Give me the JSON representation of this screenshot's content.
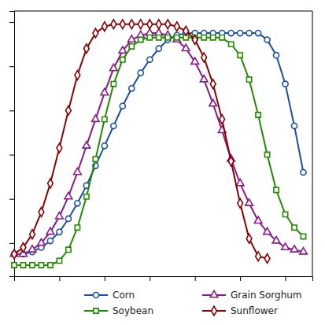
{
  "chart_data": {
    "type": "line",
    "series": [
      {
        "name": "Corn",
        "color": "#1a4faa",
        "marker": "circle",
        "x": [
          0,
          1,
          2,
          3,
          4,
          5,
          6,
          7,
          8,
          9,
          10,
          11,
          12,
          13,
          14,
          15,
          16,
          17,
          18,
          19,
          20,
          21,
          22,
          23,
          24,
          25,
          26,
          27,
          28,
          29,
          30,
          31,
          32
        ],
        "values": [
          0.15,
          0.15,
          0.16,
          0.18,
          0.21,
          0.25,
          0.31,
          0.38,
          0.46,
          0.55,
          0.64,
          0.73,
          0.82,
          0.9,
          0.97,
          1.03,
          1.08,
          1.12,
          1.14,
          1.15,
          1.15,
          1.15,
          1.15,
          1.15,
          1.15,
          1.15,
          1.15,
          1.15,
          1.12,
          1.05,
          0.92,
          0.73,
          0.52
        ]
      },
      {
        "name": "Grain Sorghum",
        "color": "#8b1a8b",
        "marker": "triangle",
        "x": [
          0,
          1,
          2,
          3,
          4,
          5,
          6,
          7,
          8,
          9,
          10,
          11,
          12,
          13,
          14,
          15,
          16,
          17,
          18,
          19,
          20,
          21,
          22,
          23,
          24,
          25,
          26,
          27,
          28,
          29,
          30,
          31,
          32
        ],
        "values": [
          0.15,
          0.15,
          0.17,
          0.2,
          0.25,
          0.32,
          0.41,
          0.52,
          0.64,
          0.76,
          0.88,
          0.99,
          1.07,
          1.12,
          1.14,
          1.15,
          1.15,
          1.14,
          1.12,
          1.08,
          1.02,
          0.94,
          0.83,
          0.71,
          0.58,
          0.47,
          0.38,
          0.3,
          0.25,
          0.21,
          0.18,
          0.17,
          0.16
        ]
      },
      {
        "name": "Soybean",
        "color": "#228b00",
        "marker": "square",
        "x": [
          0,
          1,
          2,
          3,
          4,
          5,
          6,
          7,
          8,
          9,
          10,
          11,
          12,
          13,
          14,
          15,
          16,
          17,
          18,
          19,
          20,
          21,
          22,
          23,
          24,
          25,
          26,
          27,
          28,
          29,
          30,
          31,
          32
        ],
        "values": [
          0.1,
          0.1,
          0.1,
          0.1,
          0.1,
          0.12,
          0.17,
          0.27,
          0.41,
          0.58,
          0.76,
          0.92,
          1.03,
          1.09,
          1.12,
          1.13,
          1.13,
          1.13,
          1.13,
          1.13,
          1.13,
          1.13,
          1.13,
          1.13,
          1.1,
          1.05,
          0.94,
          0.78,
          0.6,
          0.44,
          0.33,
          0.27,
          0.23
        ]
      },
      {
        "name": "Sunflower",
        "color": "#8b0000",
        "marker": "diamond",
        "x": [
          0,
          1,
          2,
          3,
          4,
          5,
          6,
          7,
          8,
          9,
          10,
          11,
          12,
          13,
          14,
          15,
          16,
          17,
          18,
          19,
          20,
          21,
          22,
          23,
          24,
          25,
          26,
          27,
          28
        ],
        "values": [
          0.15,
          0.18,
          0.24,
          0.34,
          0.47,
          0.63,
          0.8,
          0.96,
          1.08,
          1.15,
          1.18,
          1.19,
          1.19,
          1.19,
          1.19,
          1.19,
          1.19,
          1.19,
          1.18,
          1.16,
          1.12,
          1.04,
          0.92,
          0.76,
          0.57,
          0.38,
          0.22,
          0.14,
          0.13
        ]
      }
    ],
    "xlim": [
      0,
      33
    ],
    "xticks": [
      0,
      5,
      10,
      15,
      20,
      25,
      30
    ],
    "ylim": [
      0.05,
      1.25
    ],
    "yticks": [
      0.2,
      0.4,
      0.6,
      0.8,
      1.0,
      1.2
    ],
    "tick_labels": false,
    "grid": false,
    "legend": "lower right"
  }
}
